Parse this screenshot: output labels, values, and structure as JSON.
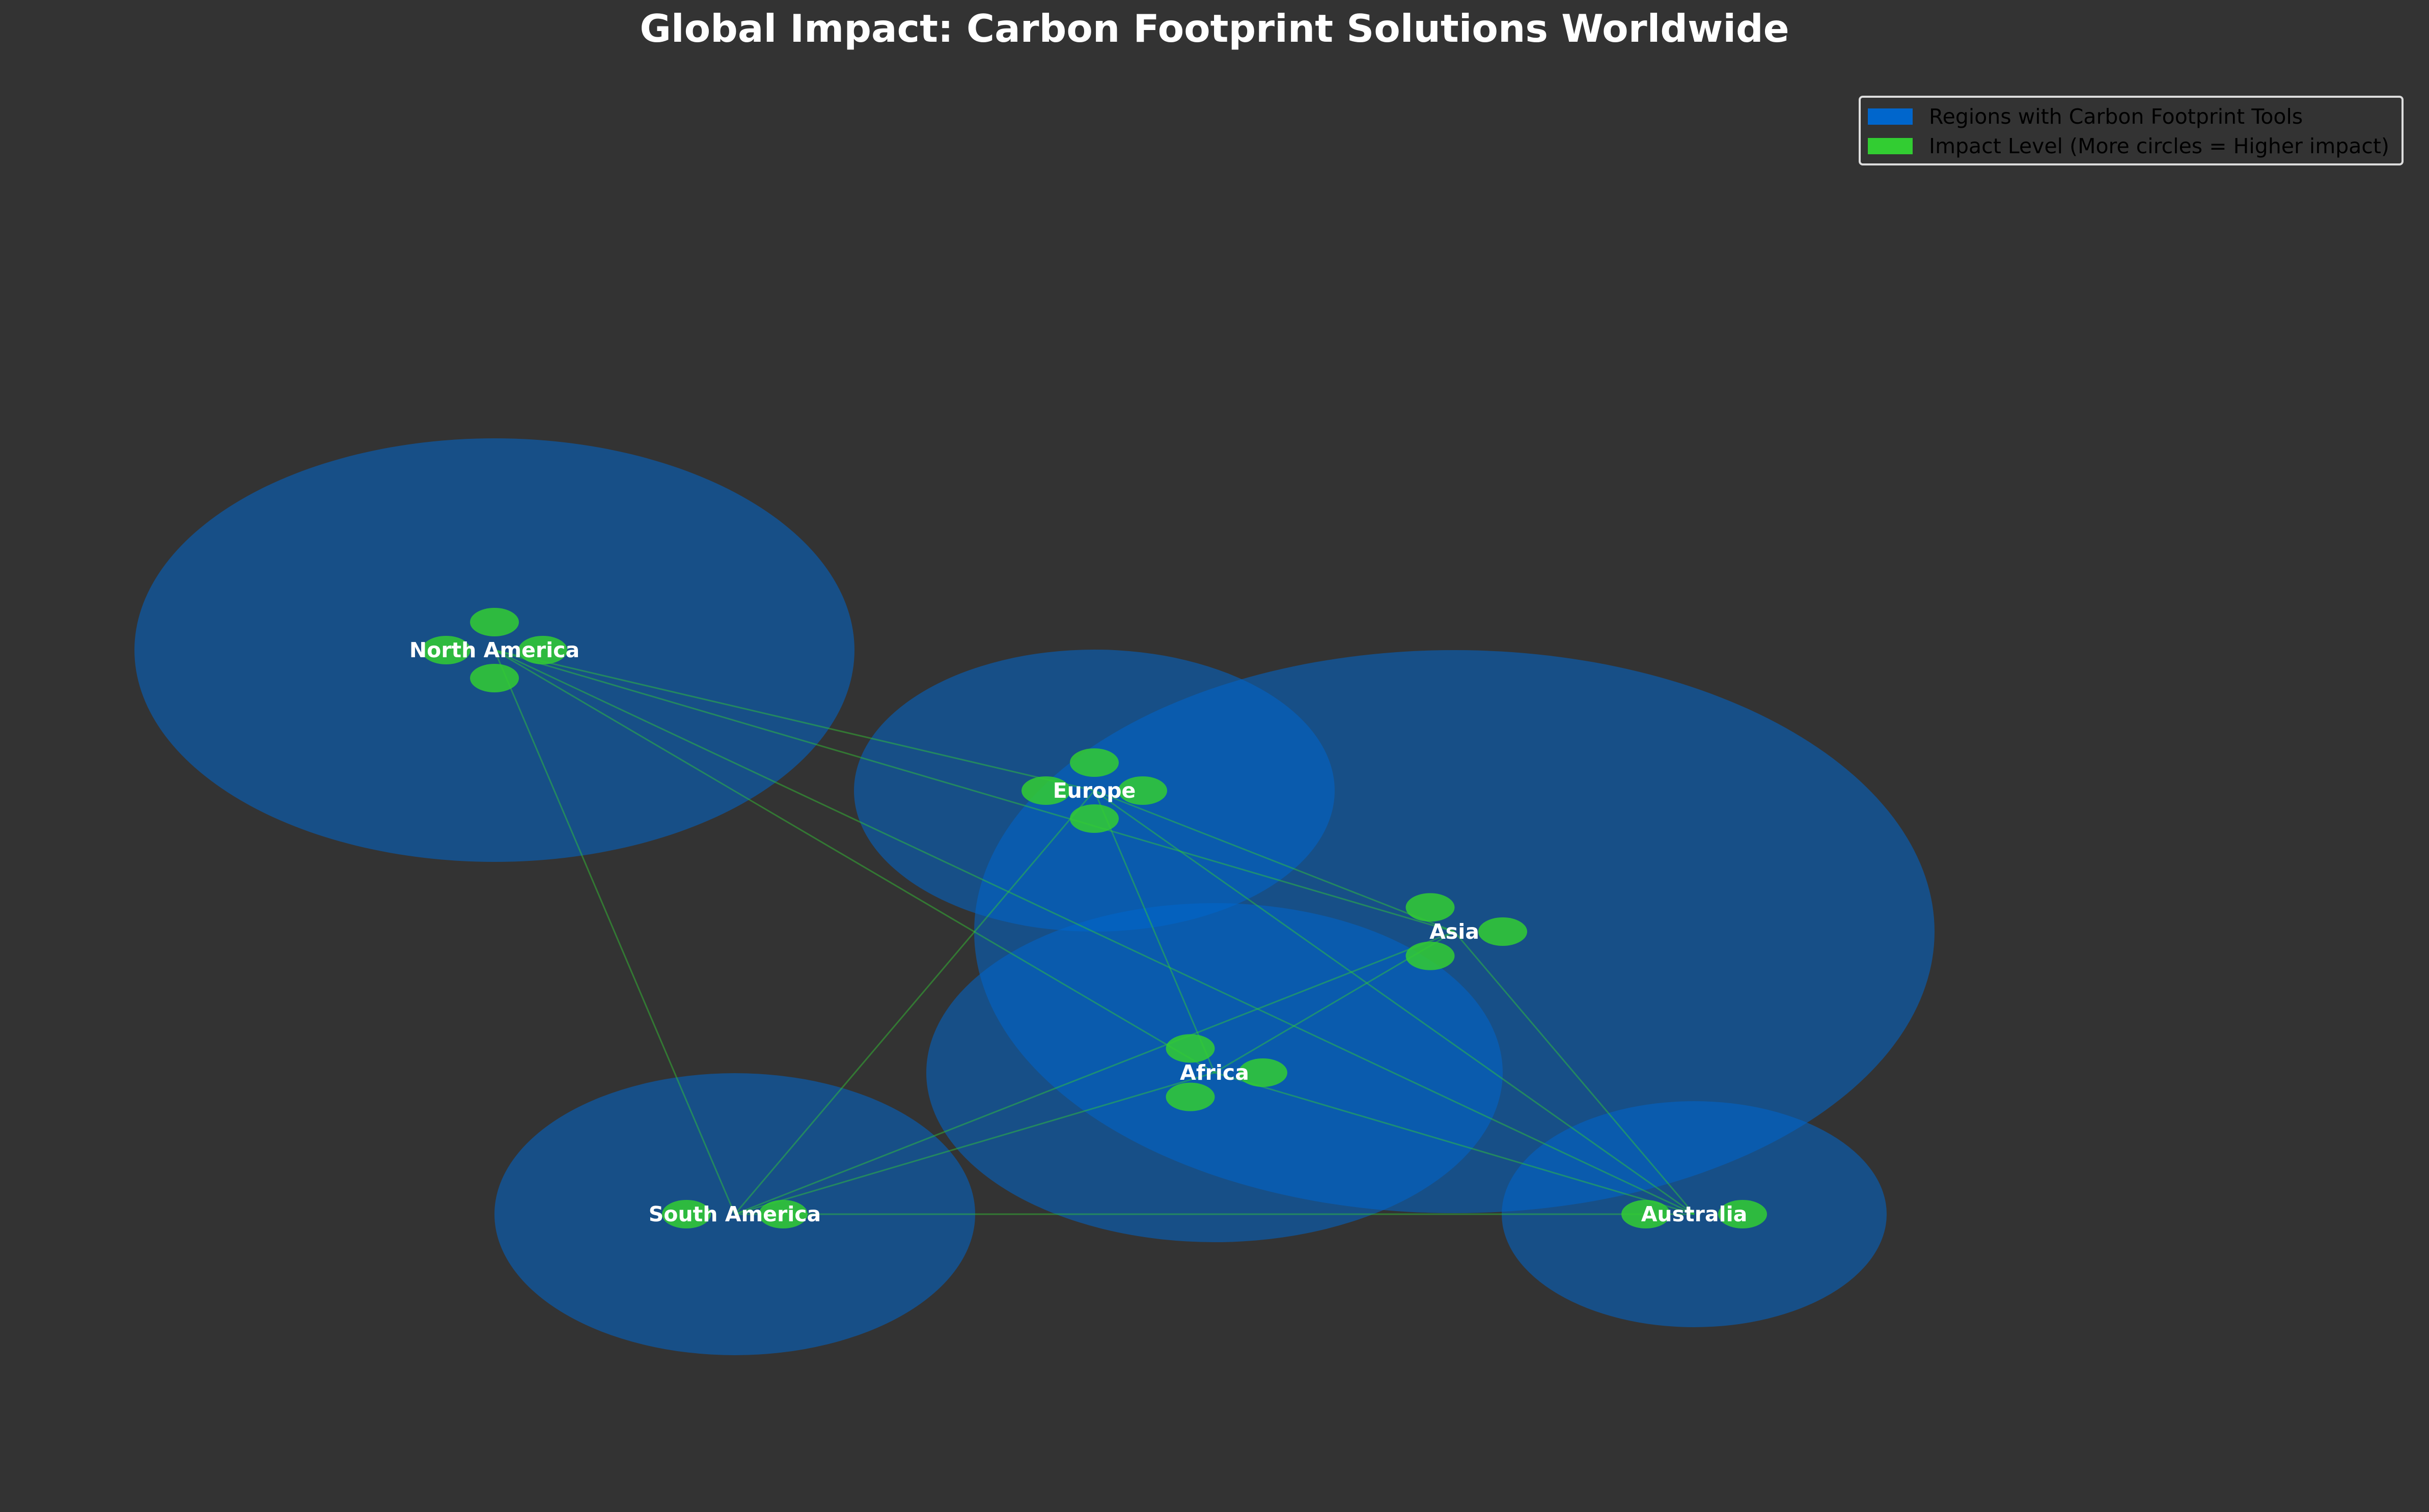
{
  "title": "Global Impact: Carbon Footprint Solutions Worldwide",
  "colors": {
    "background": "#333333",
    "region_fill": "#0066cc",
    "impact_fill": "#32cd32",
    "link": "#32cd32",
    "label": "#ffffff"
  },
  "legend": {
    "placement": "top-right",
    "regions_label": "Regions with Carbon Footprint Tools",
    "impact_label": "Impact Level (More circles = Higher impact)"
  },
  "regions": [
    {
      "name": "North America",
      "impact_circles": 4
    },
    {
      "name": "Europe",
      "impact_circles": 4
    },
    {
      "name": "Asia",
      "impact_circles": 3
    },
    {
      "name": "Africa",
      "impact_circles": 3
    },
    {
      "name": "South America",
      "impact_circles": 2
    },
    {
      "name": "Australia",
      "impact_circles": 2
    }
  ],
  "connections": [
    [
      "North America",
      "Europe"
    ],
    [
      "North America",
      "Asia"
    ],
    [
      "North America",
      "Africa"
    ],
    [
      "North America",
      "South America"
    ],
    [
      "North America",
      "Australia"
    ],
    [
      "Europe",
      "Asia"
    ],
    [
      "Europe",
      "Africa"
    ],
    [
      "Europe",
      "South America"
    ],
    [
      "Europe",
      "Australia"
    ],
    [
      "Asia",
      "Africa"
    ],
    [
      "Asia",
      "South America"
    ],
    [
      "Asia",
      "Australia"
    ],
    [
      "Africa",
      "South America"
    ],
    [
      "Africa",
      "Australia"
    ],
    [
      "South America",
      "Australia"
    ]
  ]
}
